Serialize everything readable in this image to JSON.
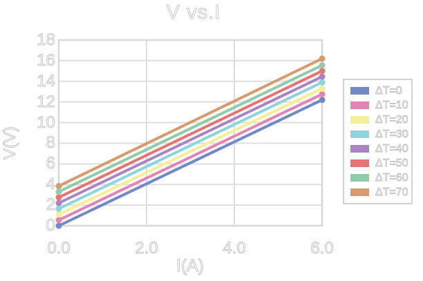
{
  "title": "V vs.I",
  "colors": {
    "background": "#ffffff",
    "gridline": "#dedede",
    "plot_border": "#d8d8d8",
    "text_outline": "#c6c6c6",
    "legend_border": "#d2d2d2"
  },
  "chart_data": {
    "type": "line",
    "title": "V vs.I",
    "xlabel": "I(A)",
    "ylabel": "V(V)",
    "xlim": [
      0,
      6
    ],
    "ylim": [
      0,
      18
    ],
    "grid": true,
    "legend_position": "right",
    "x_tick_values": [
      0,
      2,
      4,
      6
    ],
    "x_ticks": [
      "0.0",
      "2.0",
      "4.0",
      "6.0"
    ],
    "y_ticks": [
      0,
      2,
      4,
      6,
      8,
      10,
      12,
      14,
      16,
      18
    ],
    "x": [
      0,
      6
    ],
    "series": [
      {
        "name": "ΔT=0",
        "color": "#7289c8",
        "values": [
          0.0,
          12.2
        ]
      },
      {
        "name": "ΔT=10",
        "color": "#e583b5",
        "values": [
          0.55,
          12.75
        ]
      },
      {
        "name": "ΔT=20",
        "color": "#f5ef9a",
        "values": [
          1.1,
          13.3
        ]
      },
      {
        "name": "ΔT=30",
        "color": "#8fd4dd",
        "values": [
          1.65,
          13.9
        ]
      },
      {
        "name": "ΔT=40",
        "color": "#a884c5",
        "values": [
          2.2,
          14.45
        ]
      },
      {
        "name": "ΔT=50",
        "color": "#e97272",
        "values": [
          2.75,
          15.0
        ]
      },
      {
        "name": "ΔT=60",
        "color": "#8fcda9",
        "values": [
          3.3,
          15.55
        ]
      },
      {
        "name": "ΔT=70",
        "color": "#d79b6e",
        "values": [
          3.85,
          16.2
        ]
      }
    ]
  }
}
